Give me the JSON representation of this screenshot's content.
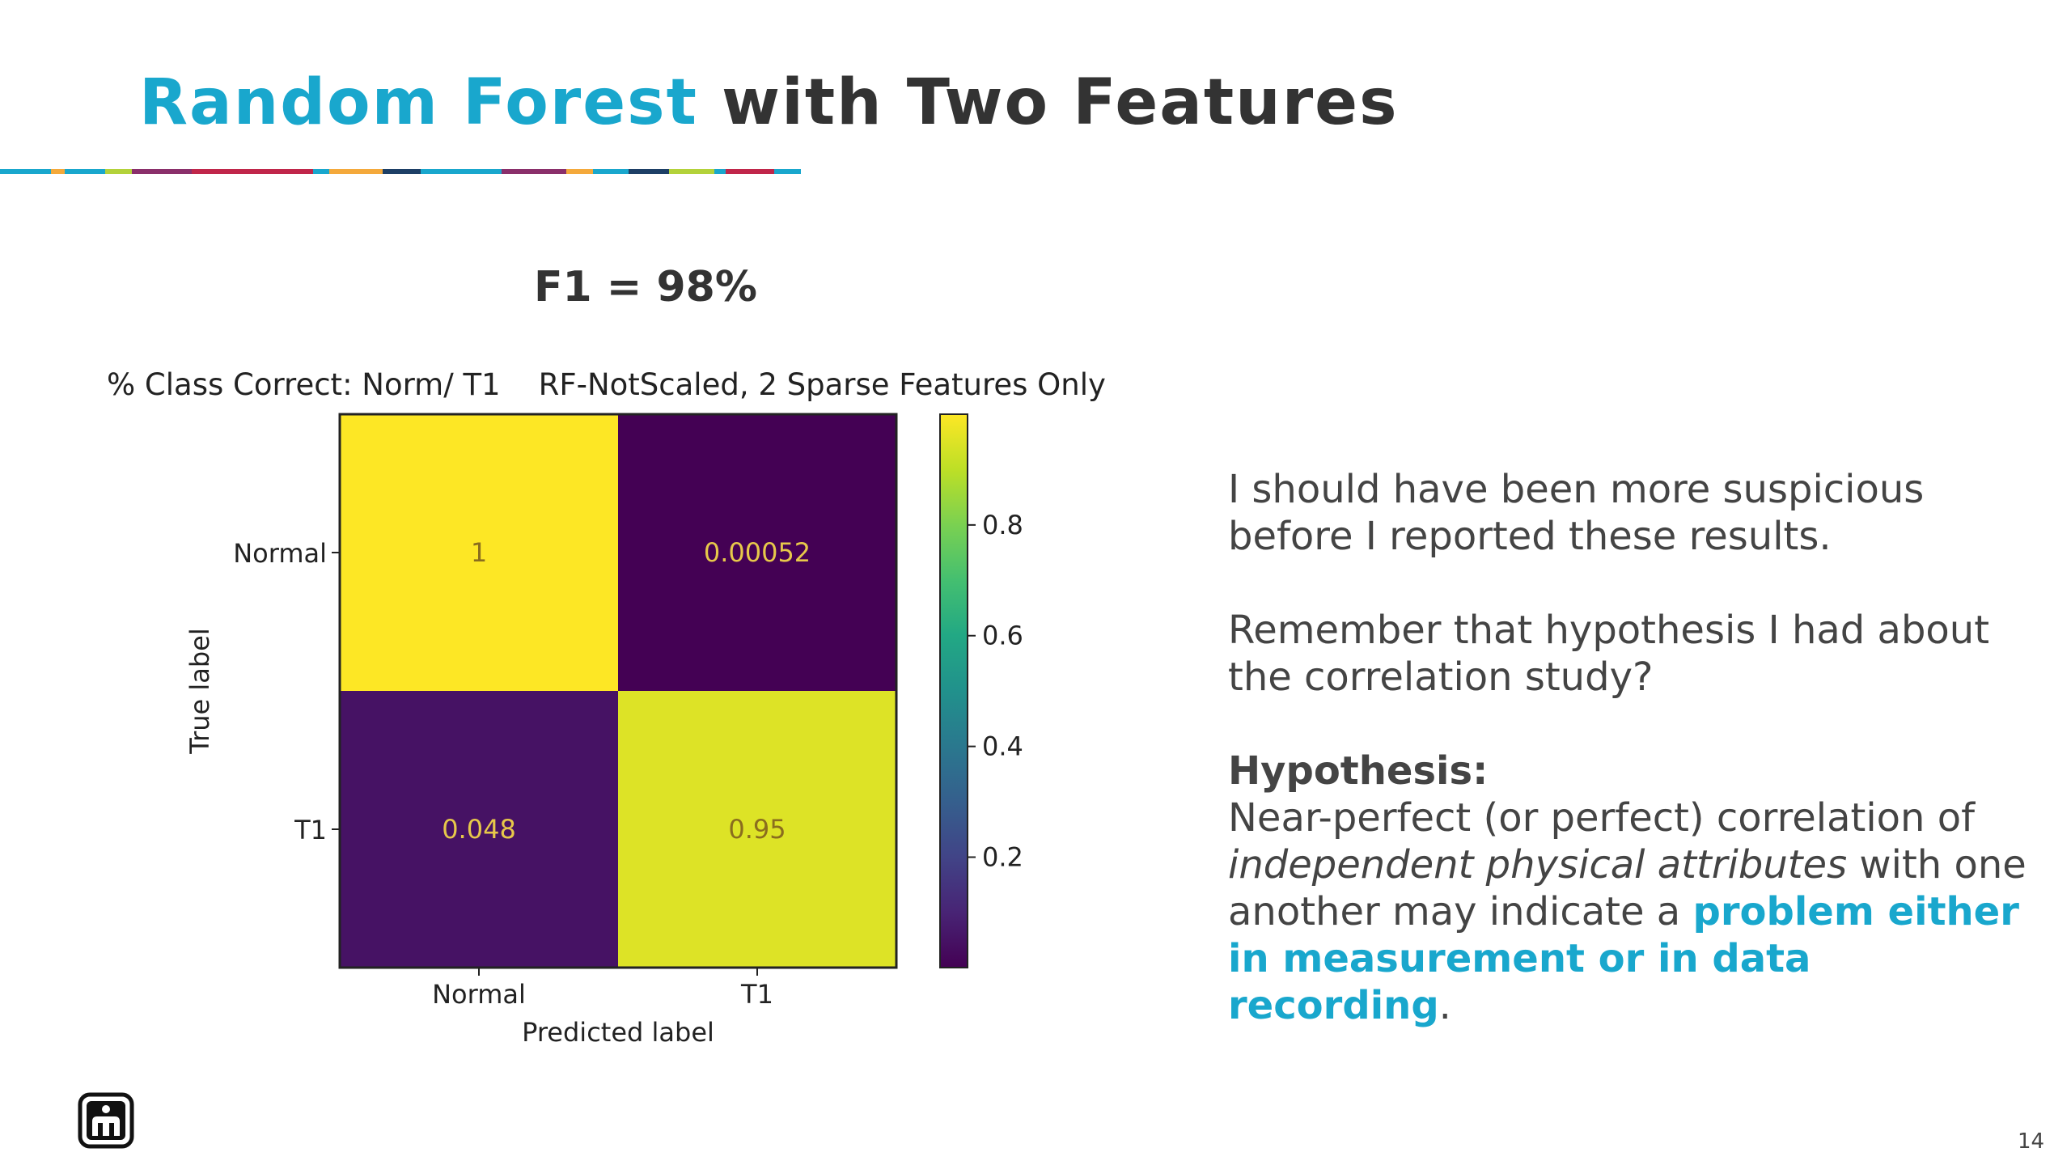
{
  "slide": {
    "title_accent": "Random Forest",
    "title_rest": " with Two Features",
    "f1": "F1 = 98%",
    "page_number": "14"
  },
  "body": {
    "p1": "I should have been more suspicious before I reported these results.",
    "p2": "Remember that hypothesis I had about the correlation study?",
    "hypothesis_heading": "Hypothesis:",
    "h_part1": "Near-perfect (or perfect) correlation of ",
    "h_italic": "independent physical attributes",
    "h_part2": " with one another may indicate a ",
    "h_highlight": "problem either in measurement or in data recording",
    "h_end": "."
  },
  "colors": {
    "accent": "#19a7cd",
    "title_dark": "#333333",
    "rule": [
      "#19a7cd",
      "#f4a93b",
      "#19a7cd",
      "#b3d23a",
      "#8a2f6b",
      "#c0264a",
      "#19a7cd",
      "#f4a93b",
      "#1d3f66",
      "#19a7cd",
      "#8a2f6b",
      "#f4a93b",
      "#19a7cd",
      "#1d3f66",
      "#b3d23a",
      "#19a7cd",
      "#c0264a",
      "#19a7cd"
    ]
  },
  "chart_data": {
    "type": "heatmap",
    "title": "% Class Correct: Norm/ T1    RF-NotScaled, 2 Sparse Features Only",
    "xlabel": "Predicted label",
    "ylabel": "True label",
    "x_categories": [
      "Normal",
      "T1"
    ],
    "y_categories": [
      "Normal",
      "T1"
    ],
    "matrix": [
      [
        1,
        0.00052
      ],
      [
        0.048,
        0.95
      ]
    ],
    "cell_labels": [
      [
        "1",
        "0.00052"
      ],
      [
        "0.048",
        "0.95"
      ]
    ],
    "colormap": "viridis",
    "colorbar": {
      "ticks": [
        0.8,
        0.6,
        0.4,
        0.2
      ],
      "tick_labels": [
        "0.8",
        "0.6",
        "0.4",
        "0.2"
      ],
      "range": [
        0.00052,
        1
      ]
    }
  }
}
